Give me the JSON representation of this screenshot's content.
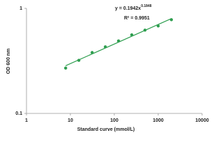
{
  "chart_data": {
    "type": "scatter",
    "x_label": "Standard curve (mmol/L)",
    "y_label": "OD 600 nm",
    "annotation": {
      "equation": "y = 0.1942x",
      "exponent": "0.1848",
      "r_squared": "R² = 0.9951"
    },
    "x": [
      7.8,
      15.6,
      31.3,
      62.5,
      125,
      250,
      500,
      1000,
      2000
    ],
    "values": [
      0.27,
      0.32,
      0.38,
      0.43,
      0.49,
      0.56,
      0.62,
      0.68,
      0.78
    ],
    "color": "#2e9e4f",
    "xlim": [
      1,
      10000
    ],
    "xticks": [
      1,
      10,
      100,
      1000,
      10000
    ],
    "ylim": [
      0.1,
      1
    ],
    "yticks": [
      0.1,
      1
    ],
    "xscale": "log",
    "yscale": "log",
    "trendline": true
  }
}
